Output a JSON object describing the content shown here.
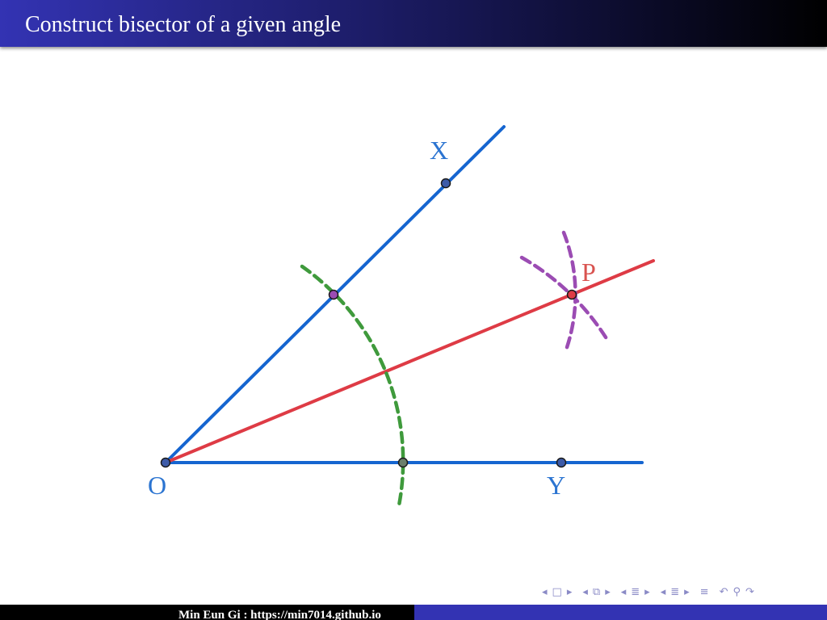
{
  "slide": {
    "title": "Construct bisector of a given angle"
  },
  "diagram": {
    "labels": {
      "O": "O",
      "X": "X",
      "Y": "Y",
      "P": "P"
    },
    "colors": {
      "rays": "#1565d0",
      "bisector": "#de3b45",
      "arc_from_O": "#3f9a3c",
      "arcs_at_P": "#9b4cb3",
      "label_blue": "#2b74d1",
      "label_red": "#d9534f"
    }
  },
  "navigation": {
    "icons": [
      "frame-prev-icon",
      "frame-icon",
      "frame-next-icon",
      "subsection-prev-icon",
      "subsection-icon",
      "subsection-next-icon",
      "section-prev-icon",
      "section-icon",
      "section-next-icon",
      "section2-prev-icon",
      "section2-icon",
      "section2-next-icon",
      "align-icon",
      "undo-icon",
      "search-icon",
      "redo-icon"
    ]
  },
  "footer": {
    "text": "Min Eun Gi : https://min7014.github.io"
  }
}
